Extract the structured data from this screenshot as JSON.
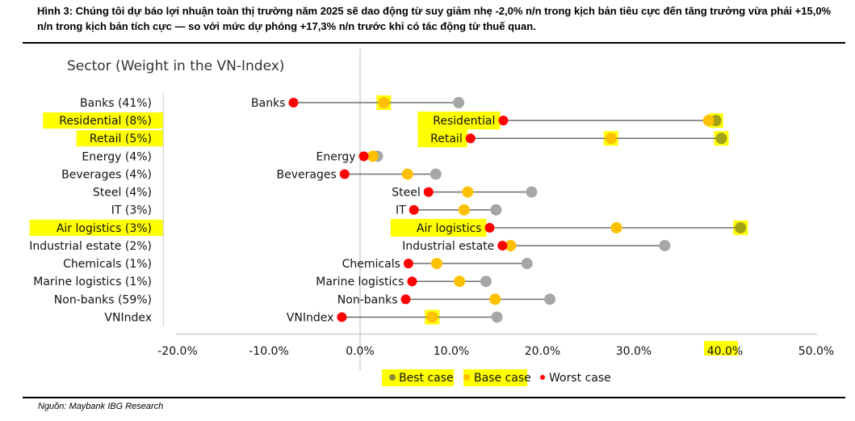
{
  "caption": "Hình 3: Chúng tôi dự báo lợi nhuận toàn thị trường năm 2025 sẽ dao động từ suy giảm nhẹ -2,0% n/n trong kịch bản tiêu cực đến tăng trưởng vừa phải +15,0% n/n trong kịch bản tích cực — so với mức dự phóng +17,3% n/n trước khi có tác động từ thuế quan.",
  "source": "Nguồn: Maybank IBG Research",
  "colors": {
    "best": "#a6a6a6",
    "base": "#ffc000",
    "worst": "#ff0000",
    "connector": "#6e6e6e",
    "axis": "#d0d0d0",
    "highlight": "#ffff00"
  },
  "chart_data": {
    "type": "dumbbell",
    "title": "Sector (Weight in the VN-Index)",
    "xlabel": "",
    "ylabel": "",
    "xlim": [
      -20,
      50
    ],
    "x_ticks": [
      "-20.0%",
      "-10.0%",
      "0.0%",
      "10.0%",
      "20.0%",
      "30.0%",
      "40.0%",
      "50.0%"
    ],
    "x_tick_values": [
      -20,
      -10,
      0,
      10,
      20,
      30,
      40,
      50
    ],
    "grid": false,
    "legend_position": "bottom",
    "legend": [
      "Best case",
      "Base case",
      "Worst case"
    ],
    "categories": [
      {
        "axis_label": "Banks (41%)",
        "point_label": "Banks",
        "worst": -7.3,
        "base": 2.6,
        "best": 10.8,
        "highlight_axis": false,
        "highlight_point_label": false
      },
      {
        "axis_label": "Residential (8%)",
        "point_label": "Residential",
        "worst": 15.7,
        "base": 38.2,
        "best": 39.0,
        "highlight_axis": true,
        "highlight_point_label": true
      },
      {
        "axis_label": "Retail (5%)",
        "point_label": "Retail",
        "worst": 12.1,
        "base": 27.5,
        "best": 39.6,
        "highlight_axis": true,
        "highlight_point_label": true
      },
      {
        "axis_label": "Energy (4%)",
        "point_label": "Energy",
        "worst": 0.4,
        "base": 1.4,
        "best": 1.9,
        "highlight_axis": false,
        "highlight_point_label": false
      },
      {
        "axis_label": "Beverages (4%)",
        "point_label": "Beverages",
        "worst": -1.7,
        "base": 5.2,
        "best": 8.3,
        "highlight_axis": false,
        "highlight_point_label": false
      },
      {
        "axis_label": "Steel (4%)",
        "point_label": "Steel",
        "worst": 7.5,
        "base": 11.8,
        "best": 18.8,
        "highlight_axis": false,
        "highlight_point_label": false
      },
      {
        "axis_label": "IT (3%)",
        "point_label": "IT",
        "worst": 5.9,
        "base": 11.4,
        "best": 14.9,
        "highlight_axis": false,
        "highlight_point_label": false
      },
      {
        "axis_label": "Air logistics (3%)",
        "point_label": "Air logistics",
        "worst": 14.2,
        "base": 28.1,
        "best": 41.7,
        "highlight_axis": true,
        "highlight_point_label": true
      },
      {
        "axis_label": "Industrial estate (2%)",
        "point_label": "Industrial estate",
        "worst": 15.6,
        "base": 16.5,
        "best": 33.4,
        "highlight_axis": false,
        "highlight_point_label": false
      },
      {
        "axis_label": "Chemicals (1%)",
        "point_label": "Chemicals",
        "worst": 5.3,
        "base": 8.4,
        "best": 18.3,
        "highlight_axis": false,
        "highlight_point_label": false
      },
      {
        "axis_label": "Marine logistics (1%)",
        "point_label": "Marine logistics",
        "worst": 5.7,
        "base": 10.9,
        "best": 13.8,
        "highlight_axis": false,
        "highlight_point_label": false
      },
      {
        "axis_label": "Non-banks (59%)",
        "point_label": "Non-banks",
        "worst": 5.0,
        "base": 14.8,
        "best": 20.8,
        "highlight_axis": false,
        "highlight_point_label": false
      },
      {
        "axis_label": "VNIndex",
        "point_label": "VNIndex",
        "worst": -2.0,
        "base": 7.9,
        "best": 15.0,
        "highlight_axis": false,
        "highlight_point_label": false
      }
    ],
    "series": [
      {
        "name": "Worst case",
        "values": [
          -7.3,
          15.7,
          12.1,
          0.4,
          -1.7,
          7.5,
          5.9,
          14.2,
          15.6,
          5.3,
          5.7,
          5.0,
          -2.0
        ]
      },
      {
        "name": "Base case",
        "values": [
          2.6,
          38.2,
          27.5,
          1.4,
          5.2,
          11.8,
          11.4,
          28.1,
          16.5,
          8.4,
          10.9,
          14.8,
          7.9
        ]
      },
      {
        "name": "Best case",
        "values": [
          10.8,
          39.0,
          39.6,
          1.9,
          8.3,
          18.8,
          14.9,
          41.7,
          33.4,
          18.3,
          13.8,
          20.8,
          15.0
        ]
      }
    ]
  }
}
